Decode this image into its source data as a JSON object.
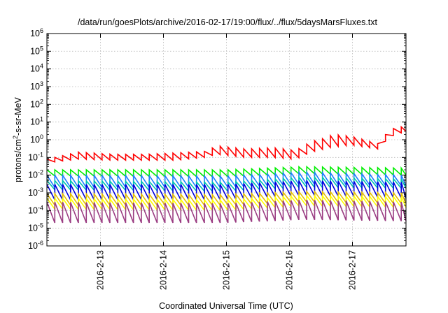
{
  "chart_data": {
    "type": "line",
    "title": "/data/run/goesPlots/archive/2016-02-17/19:00/flux/../flux/5daysMarsFluxes.txt",
    "xlabel": "Coordinated Universal Time (UTC)",
    "ylabel": {
      "prefix": "protons/cm",
      "sup": "2",
      "suffix": "-s-sr-MeV"
    },
    "y_scale": "log",
    "ylim_exponents": [
      -6,
      6
    ],
    "y_base": "10",
    "y_tick_exponents": [
      "-6",
      "-5",
      "-4",
      "-3",
      "-2",
      "-1",
      "0",
      "1",
      "2",
      "3",
      "4",
      "5",
      "6"
    ],
    "x_range_days": [
      12.15,
      17.85
    ],
    "x_ticks": [
      {
        "label": "2016-2-13",
        "day": 13
      },
      {
        "label": "2016-2-14",
        "day": 14
      },
      {
        "label": "2016-2-15",
        "day": 15
      },
      {
        "label": "2016-2-16",
        "day": 16
      },
      {
        "label": "2016-2-17",
        "day": 17
      }
    ],
    "grid": true,
    "legend": "none",
    "sample_period_days": 0.125,
    "series": [
      {
        "color": "#ff0000",
        "sawtooth": [
          {
            "day": 12.15,
            "peak": 0.08,
            "trough": 0.05
          },
          {
            "day": 12.65,
            "peak": 0.2,
            "trough": 0.08
          },
          {
            "day": 13.2,
            "peak": 0.15,
            "trough": 0.07
          },
          {
            "day": 13.7,
            "peak": 0.15,
            "trough": 0.07
          },
          {
            "day": 14.2,
            "peak": 0.18,
            "trough": 0.07
          },
          {
            "day": 14.65,
            "peak": 0.22,
            "trough": 0.1
          },
          {
            "day": 14.85,
            "peak": 0.45,
            "trough": 0.15
          },
          {
            "day": 15.3,
            "peak": 0.3,
            "trough": 0.1
          },
          {
            "day": 15.75,
            "peak": 0.35,
            "trough": 0.1
          },
          {
            "day": 16.1,
            "peak": 0.25,
            "trough": 0.08
          },
          {
            "day": 16.35,
            "peak": 0.8,
            "trough": 0.2
          },
          {
            "day": 16.55,
            "peak": 1.2,
            "trough": 0.3
          },
          {
            "day": 16.7,
            "peak": 2.0,
            "trough": 0.4
          },
          {
            "day": 17.0,
            "peak": 1.5,
            "trough": 0.5
          },
          {
            "day": 17.4,
            "peak": 0.6,
            "trough": 0.3
          },
          {
            "day": 17.6,
            "peak": 4.0,
            "trough": 1.5
          },
          {
            "day": 17.85,
            "peak": 6.0,
            "trough": 3.0
          }
        ]
      },
      {
        "color": "#00ee00",
        "sawtooth": [
          {
            "day": 12.15,
            "peak": 0.02,
            "trough": 0.009
          },
          {
            "day": 15.0,
            "peak": 0.02,
            "trough": 0.008
          },
          {
            "day": 16.2,
            "peak": 0.03,
            "trough": 0.012
          },
          {
            "day": 17.85,
            "peak": 0.025,
            "trough": 0.01
          }
        ]
      },
      {
        "color": "#1a7fff",
        "sawtooth": [
          {
            "day": 12.15,
            "peak": 0.01,
            "trough": 0.002
          },
          {
            "day": 15.0,
            "peak": 0.009,
            "trough": 0.002
          },
          {
            "day": 16.2,
            "peak": 0.015,
            "trough": 0.003
          },
          {
            "day": 17.85,
            "peak": 0.01,
            "trough": 0.0025
          }
        ]
      },
      {
        "color": "#00c4b0",
        "sawtooth": [
          {
            "day": 12.15,
            "peak": 0.005,
            "trough": 0.0015
          },
          {
            "day": 15.0,
            "peak": 0.004,
            "trough": 0.0012
          },
          {
            "day": 16.2,
            "peak": 0.008,
            "trough": 0.002
          },
          {
            "day": 17.85,
            "peak": 0.006,
            "trough": 0.0018
          }
        ]
      },
      {
        "color": "#0000dd",
        "sawtooth": [
          {
            "day": 12.15,
            "peak": 0.003,
            "trough": 0.0004
          },
          {
            "day": 15.0,
            "peak": 0.003,
            "trough": 0.0004
          },
          {
            "day": 16.2,
            "peak": 0.005,
            "trough": 0.0007
          },
          {
            "day": 17.85,
            "peak": 0.004,
            "trough": 0.0005
          }
        ]
      },
      {
        "color": "#e8c000",
        "sawtooth": [
          {
            "day": 12.15,
            "peak": 0.0009,
            "trough": 0.0002
          },
          {
            "day": 15.0,
            "peak": 0.0008,
            "trough": 0.0002
          },
          {
            "day": 16.2,
            "peak": 0.0012,
            "trough": 0.0003
          },
          {
            "day": 17.85,
            "peak": 0.001,
            "trough": 0.00025
          }
        ]
      },
      {
        "color": "#ffff00",
        "sawtooth": [
          {
            "day": 12.15,
            "peak": 0.0005,
            "trough": 0.00012
          },
          {
            "day": 15.0,
            "peak": 0.0004,
            "trough": 0.0001
          },
          {
            "day": 16.2,
            "peak": 0.0007,
            "trough": 0.00018
          },
          {
            "day": 17.85,
            "peak": 0.0006,
            "trough": 0.00015
          }
        ]
      },
      {
        "color": "#9a3c82",
        "sawtooth": [
          {
            "day": 12.15,
            "peak": 0.0003,
            "trough": 2e-05
          },
          {
            "day": 15.0,
            "peak": 0.00025,
            "trough": 2e-05
          },
          {
            "day": 16.2,
            "peak": 0.0004,
            "trough": 3e-05
          },
          {
            "day": 17.85,
            "peak": 0.0003,
            "trough": 2.5e-05
          }
        ]
      }
    ]
  }
}
